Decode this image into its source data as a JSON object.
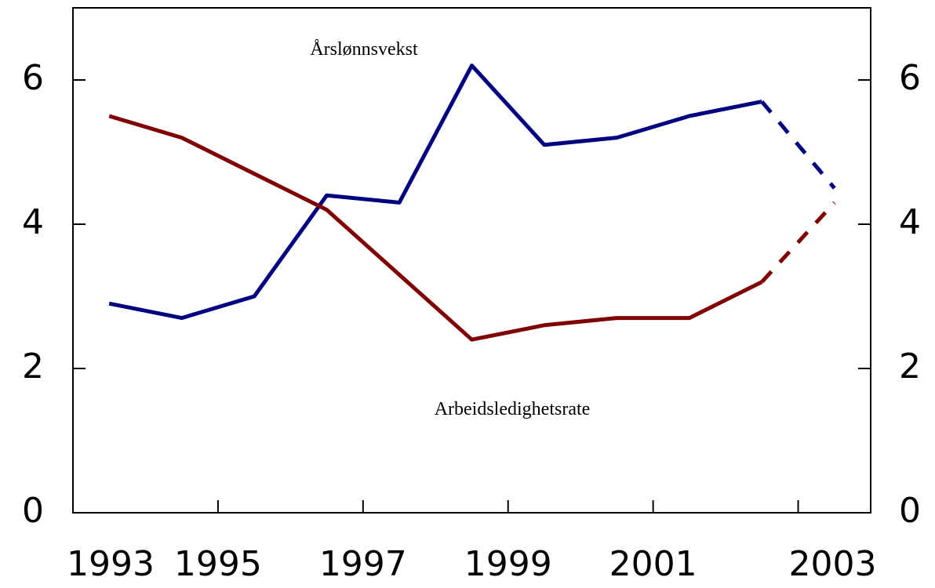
{
  "chart_data": {
    "type": "line",
    "x": [
      1993.5,
      1994.5,
      1995.5,
      1996.5,
      1997.5,
      1998.5,
      1999.5,
      2000.5,
      2001.5,
      2002.5,
      2003.5
    ],
    "series": [
      {
        "name": "Årslønnsvekst",
        "color": "#000080",
        "values": [
          2.9,
          2.7,
          3.0,
          4.4,
          4.3,
          6.2,
          5.1,
          5.2,
          5.5,
          5.7,
          4.5
        ]
      },
      {
        "name": "Arbeidsledighetsrate",
        "color": "#800000",
        "values": [
          5.5,
          5.2,
          4.7,
          4.2,
          3.3,
          2.4,
          2.6,
          2.7,
          2.7,
          3.2,
          4.3
        ]
      }
    ],
    "forecast_from": 2002.5,
    "xlim": [
      1993,
      2004
    ],
    "xticks": [
      1993,
      1995,
      1997,
      1999,
      2001,
      2003
    ],
    "ylim": [
      0,
      7
    ],
    "yticks": [
      0,
      2,
      4,
      6
    ],
    "y2lim": [
      0,
      7
    ],
    "y2ticks": [
      0,
      2,
      4,
      6
    ]
  }
}
